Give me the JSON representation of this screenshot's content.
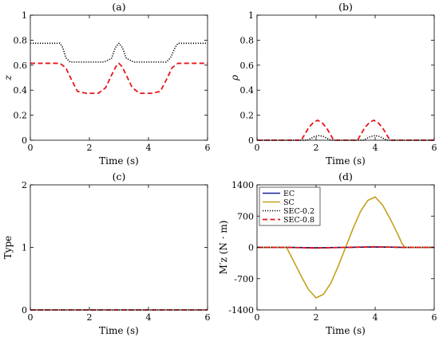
{
  "colors": {
    "EC": "#1f1f9f",
    "SC": "#c3a01b",
    "SEC-0.2": "#000000",
    "SEC-0.8": "#e8141b"
  },
  "chart_data": [
    {
      "panel": "(a)",
      "type": "line",
      "title": "(a)",
      "xlabel": "Time (s)",
      "ylabel": "z",
      "xlim": [
        0,
        6
      ],
      "ylim": [
        0,
        1
      ],
      "xticks": [
        0,
        2,
        4,
        6
      ],
      "yticks": [
        0,
        0.2,
        0.4,
        0.6,
        0.8,
        1
      ],
      "ytick_labels": [
        "0",
        "0.2",
        "0.4",
        "0.6",
        "0.8",
        "1"
      ],
      "series": [
        {
          "name": "SEC-0.2",
          "style": "dotted",
          "x": [
            0,
            1.0,
            1.1,
            1.2,
            1.35,
            2.5,
            2.75,
            2.88,
            3.0,
            3.12,
            3.25,
            3.5,
            4.6,
            4.75,
            4.9,
            5.0,
            6
          ],
          "y": [
            0.775,
            0.775,
            0.74,
            0.66,
            0.625,
            0.625,
            0.655,
            0.74,
            0.775,
            0.74,
            0.655,
            0.625,
            0.625,
            0.66,
            0.74,
            0.775,
            0.775
          ]
        },
        {
          "name": "SEC-0.8",
          "style": "dashed",
          "x": [
            0,
            1.0,
            1.2,
            1.4,
            1.6,
            1.9,
            2.3,
            2.55,
            2.75,
            2.9,
            3.0,
            3.1,
            3.25,
            3.45,
            3.7,
            4.1,
            4.4,
            4.6,
            4.8,
            5.0,
            6
          ],
          "y": [
            0.615,
            0.615,
            0.58,
            0.48,
            0.39,
            0.375,
            0.375,
            0.42,
            0.52,
            0.59,
            0.615,
            0.59,
            0.52,
            0.42,
            0.375,
            0.375,
            0.39,
            0.48,
            0.58,
            0.615,
            0.615
          ]
        }
      ]
    },
    {
      "panel": "(b)",
      "type": "line",
      "title": "(b)",
      "xlabel": "Time (s)",
      "ylabel": "ρ",
      "xlim": [
        0,
        6
      ],
      "ylim": [
        0,
        1
      ],
      "xticks": [
        0,
        2,
        4,
        6
      ],
      "yticks": [
        0,
        0.2,
        0.4,
        0.6,
        0.8,
        1
      ],
      "ytick_labels": [
        "0",
        "0.2",
        "0.4",
        "0.6",
        "0.8",
        "1"
      ],
      "series": [
        {
          "name": "SEC-0.2",
          "style": "dotted",
          "x": [
            0,
            1.7,
            1.8,
            1.95,
            2.1,
            2.25,
            2.4,
            2.5,
            3.6,
            3.7,
            3.85,
            4.0,
            4.15,
            4.3,
            4.4,
            6
          ],
          "y": [
            0,
            0,
            0.012,
            0.03,
            0.037,
            0.03,
            0.012,
            0,
            0,
            0.012,
            0.03,
            0.037,
            0.03,
            0.012,
            0,
            0
          ]
        },
        {
          "name": "SEC-0.8",
          "style": "dashed",
          "x": [
            0,
            1.5,
            1.6,
            1.75,
            1.9,
            2.05,
            2.2,
            2.35,
            2.5,
            2.6,
            3.4,
            3.5,
            3.65,
            3.8,
            3.95,
            4.1,
            4.25,
            4.4,
            4.5,
            6
          ],
          "y": [
            0,
            0,
            0.04,
            0.1,
            0.14,
            0.16,
            0.14,
            0.1,
            0.04,
            0,
            0,
            0.04,
            0.1,
            0.14,
            0.16,
            0.14,
            0.1,
            0.04,
            0,
            0
          ]
        }
      ]
    },
    {
      "panel": "(c)",
      "type": "line",
      "title": "(c)",
      "xlabel": "Time (s)",
      "ylabel": "Type",
      "xlim": [
        0,
        6
      ],
      "ylim": [
        0,
        2
      ],
      "xticks": [
        0,
        2,
        4,
        6
      ],
      "yticks": [
        0,
        1,
        2
      ],
      "ytick_labels": [
        "0",
        "1",
        "2"
      ],
      "series": [
        {
          "name": "SEC-0.2",
          "style": "dotted",
          "x": [
            0,
            6
          ],
          "y": [
            0,
            0
          ]
        },
        {
          "name": "SEC-0.8",
          "style": "dashed",
          "x": [
            0,
            6
          ],
          "y": [
            0,
            0
          ]
        }
      ]
    },
    {
      "panel": "(d)",
      "type": "line",
      "title": "(d)",
      "xlabel": "Time (s)",
      "ylabel": "M′z (N · m)",
      "xlim": [
        0,
        6
      ],
      "ylim": [
        -1400,
        1400
      ],
      "xticks": [
        0,
        2,
        4,
        6
      ],
      "yticks": [
        -1400,
        -700,
        0,
        700,
        1400
      ],
      "ytick_labels": [
        "-1400",
        "-700",
        "0",
        "700",
        "1400"
      ],
      "legend": "top-left",
      "series": [
        {
          "name": "EC",
          "style": "solid",
          "x": [
            0,
            1,
            2,
            3,
            4,
            5,
            6
          ],
          "y": [
            0,
            0,
            -10,
            0,
            10,
            0,
            0
          ]
        },
        {
          "name": "SC",
          "style": "solid",
          "x": [
            0,
            1.0,
            1.25,
            1.5,
            1.75,
            2.0,
            2.25,
            2.5,
            2.75,
            3.0,
            3.25,
            3.5,
            3.75,
            4.0,
            4.25,
            4.5,
            4.75,
            4.9,
            5.0,
            6
          ],
          "y": [
            0,
            0,
            -320,
            -650,
            -950,
            -1130,
            -1050,
            -800,
            -420,
            0,
            420,
            800,
            1050,
            1130,
            950,
            650,
            320,
            100,
            0,
            0
          ]
        },
        {
          "name": "SEC-0.2",
          "style": "dotted",
          "x": [
            0,
            1,
            2,
            3,
            4,
            5,
            6
          ],
          "y": [
            0,
            0,
            -8,
            0,
            8,
            0,
            0
          ]
        },
        {
          "name": "SEC-0.8",
          "style": "dashed",
          "x": [
            0,
            1,
            2,
            3,
            4,
            5,
            6
          ],
          "y": [
            0,
            0,
            -15,
            0,
            15,
            0,
            0
          ]
        }
      ]
    }
  ]
}
